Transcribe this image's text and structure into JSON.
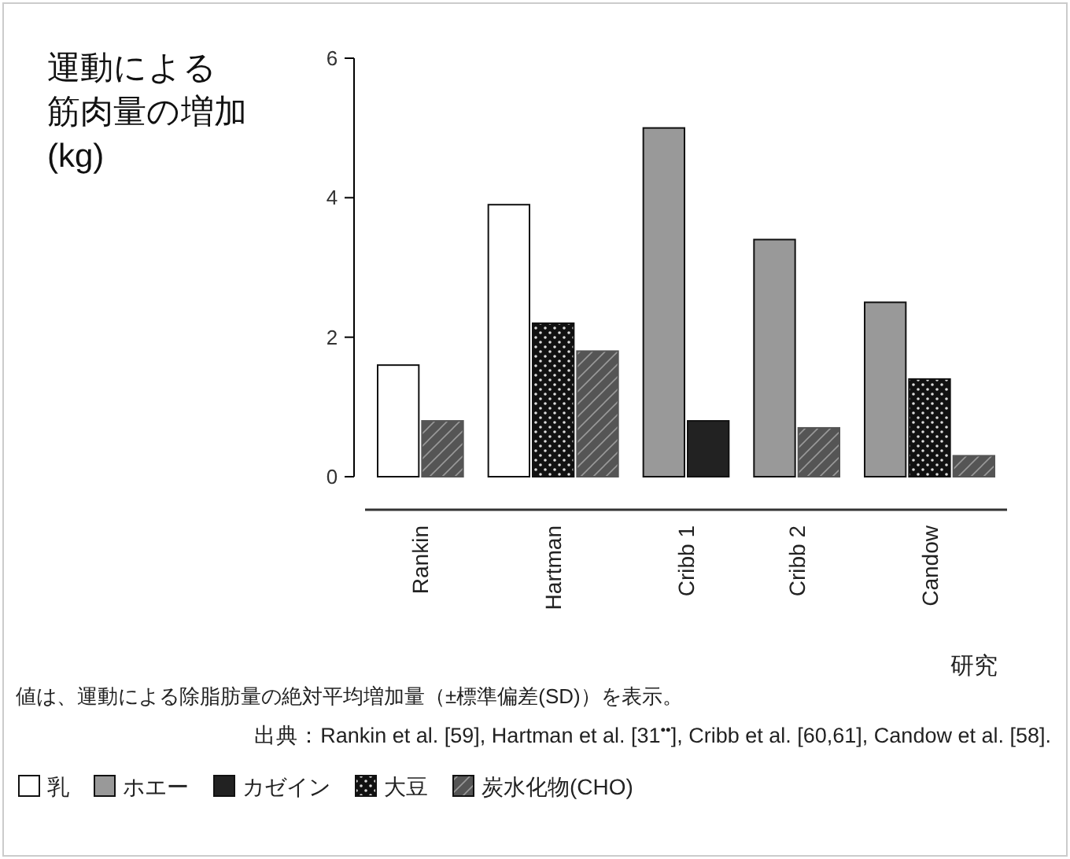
{
  "chart_data": {
    "type": "bar",
    "ylabel": "運動による筋肉量の増加(kg)",
    "xlabel": "研究",
    "categories": [
      "Rankin",
      "Hartman",
      "Cribb 1",
      "Cribb 2",
      "Candow"
    ],
    "series": [
      {
        "name": "乳",
        "color": "#ffffff",
        "values": [
          1.6,
          3.9,
          null,
          null,
          null
        ]
      },
      {
        "name": "ホエー",
        "color": "#999999",
        "values": [
          null,
          null,
          5.0,
          3.4,
          2.5
        ]
      },
      {
        "name": "カゼイン",
        "color": "#222222",
        "values": [
          null,
          null,
          0.8,
          null,
          null
        ]
      },
      {
        "name": "大豆",
        "color": "#111111",
        "values": [
          null,
          2.2,
          null,
          null,
          1.4
        ]
      },
      {
        "name": "炭水化物(CHO)",
        "color": "#555555",
        "values": [
          0.8,
          1.8,
          null,
          0.7,
          0.3
        ]
      }
    ],
    "ylim": [
      0,
      6
    ],
    "yticks": [
      0,
      2,
      4,
      6
    ],
    "grid": false,
    "legend": "bottom",
    "annotations": [
      "値は、運動による除脂肪量の絶対平均増加量（±標準偏差(SD)）を表示。",
      "出典：Rankin et al. [59], Hartman et al. [31$^{••}$], Cribb et al. [60,61], Candow et al. [58]."
    ]
  }
}
